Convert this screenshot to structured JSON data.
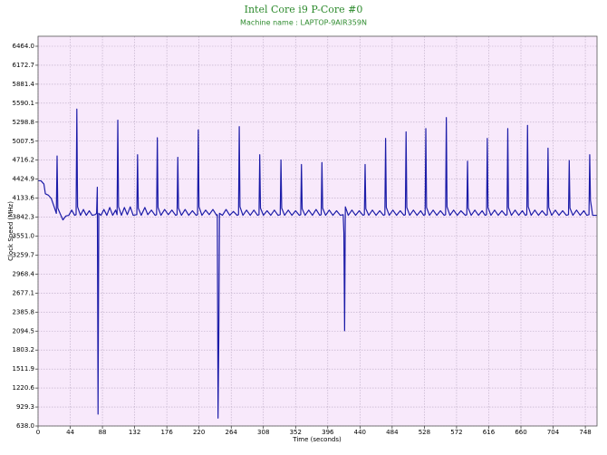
{
  "chart_data": {
    "type": "line",
    "title": "Intel Core i9 P-Core #0",
    "subtitle": "Machine name : LAPTOP-9AIR359N",
    "x_label": "Time (seconds)",
    "y_label": "Clock Speed (MHz)",
    "x": [
      0,
      4,
      8,
      10,
      14,
      18,
      22,
      25,
      26,
      27,
      30,
      34,
      38,
      42,
      46,
      50,
      52,
      53,
      54,
      58,
      62,
      66,
      70,
      74,
      78,
      80,
      81,
      82,
      83,
      86,
      90,
      94,
      98,
      102,
      106,
      108,
      109,
      110,
      114,
      118,
      122,
      126,
      130,
      135,
      136,
      137,
      141,
      146,
      150,
      155,
      160,
      162,
      163,
      164,
      168,
      173,
      178,
      183,
      188,
      190,
      191,
      192,
      196,
      201,
      206,
      211,
      216,
      218,
      219,
      220,
      224,
      229,
      234,
      239,
      244,
      245,
      246,
      247,
      248,
      252,
      257,
      262,
      267,
      272,
      274,
      275,
      276,
      280,
      285,
      290,
      295,
      300,
      302,
      303,
      304,
      308,
      313,
      318,
      323,
      328,
      331,
      332,
      333,
      337,
      342,
      347,
      352,
      357,
      359,
      360,
      361,
      365,
      370,
      375,
      380,
      385,
      387,
      388,
      389,
      393,
      398,
      403,
      408,
      413,
      417,
      418,
      419,
      420,
      424,
      429,
      434,
      439,
      444,
      446,
      447,
      448,
      452,
      457,
      462,
      467,
      472,
      474,
      475,
      476,
      480,
      485,
      490,
      495,
      500,
      502,
      503,
      504,
      508,
      513,
      518,
      523,
      527,
      529,
      530,
      531,
      535,
      540,
      545,
      550,
      555,
      557,
      558,
      559,
      563,
      568,
      573,
      578,
      584,
      586,
      587,
      588,
      592,
      597,
      602,
      607,
      611,
      613,
      614,
      615,
      619,
      624,
      629,
      634,
      639,
      641,
      642,
      643,
      647,
      652,
      657,
      662,
      666,
      668,
      669,
      670,
      674,
      679,
      684,
      689,
      694,
      696,
      697,
      698,
      702,
      707,
      712,
      717,
      722,
      725,
      726,
      727,
      731,
      736,
      741,
      746,
      750,
      753,
      754,
      755,
      758,
      764
    ],
    "series": [
      {
        "name": "P-Core #0",
        "color": "#1c1ca8",
        "values": [
          4400,
          4400,
          4350,
          4200,
          4180,
          4130,
          4000,
          3900,
          4780,
          3980,
          3900,
          3800,
          3860,
          3870,
          3950,
          3870,
          3880,
          5500,
          4000,
          3870,
          3960,
          3870,
          3940,
          3870,
          3880,
          3900,
          4300,
          820,
          3900,
          3870,
          3960,
          3870,
          3990,
          3870,
          3950,
          3880,
          5330,
          4000,
          3870,
          3990,
          3880,
          4000,
          3870,
          3880,
          4800,
          3980,
          3870,
          3990,
          3880,
          3950,
          3870,
          3880,
          5060,
          3990,
          3870,
          3960,
          3880,
          3950,
          3870,
          3880,
          4760,
          3980,
          3870,
          3960,
          3870,
          3940,
          3870,
          3880,
          5180,
          4000,
          3870,
          3950,
          3880,
          3960,
          3870,
          3880,
          760,
          1950,
          3900,
          3870,
          3960,
          3870,
          3930,
          3870,
          3880,
          5230,
          4000,
          3870,
          3950,
          3870,
          3950,
          3870,
          3880,
          4800,
          3980,
          3870,
          3940,
          3870,
          3950,
          3870,
          3880,
          4720,
          3980,
          3870,
          3950,
          3870,
          3940,
          3870,
          3880,
          4650,
          3970,
          3870,
          3950,
          3870,
          3960,
          3870,
          3880,
          4680,
          3980,
          3870,
          3950,
          3870,
          3940,
          3870,
          3880,
          3600,
          2100,
          4000,
          3870,
          3950,
          3870,
          3940,
          3870,
          3880,
          4650,
          3970,
          3870,
          3950,
          3870,
          3940,
          3870,
          3880,
          5050,
          3990,
          3870,
          3950,
          3870,
          3940,
          3870,
          3880,
          5150,
          3990,
          3870,
          3950,
          3870,
          3940,
          3870,
          3880,
          5200,
          3990,
          3870,
          3950,
          3870,
          3940,
          3870,
          3880,
          5370,
          4000,
          3870,
          3950,
          3870,
          3940,
          3870,
          3880,
          4700,
          3980,
          3870,
          3950,
          3870,
          3940,
          3870,
          3880,
          5050,
          3990,
          3870,
          3950,
          3870,
          3940,
          3870,
          3880,
          5200,
          3990,
          3870,
          3950,
          3870,
          3940,
          3870,
          3880,
          5250,
          4000,
          3870,
          3950,
          3870,
          3940,
          3870,
          3880,
          4900,
          3990,
          3870,
          3950,
          3870,
          3940,
          3870,
          3880,
          4710,
          3980,
          3870,
          3950,
          3870,
          3940,
          3870,
          3880,
          4800,
          4100,
          3870,
          3870
        ]
      }
    ],
    "xlim": [
      0,
      764
    ],
    "ylim": [
      638,
      6617
    ],
    "xticks": [
      0,
      44,
      88,
      132,
      176,
      220,
      264,
      308,
      352,
      396,
      440,
      484,
      528,
      572,
      616,
      660,
      704,
      748
    ],
    "yticks": [
      {
        "value": 638,
        "label": "638.0"
      },
      929.3,
      1220.6,
      1511.9,
      1803.2,
      2094.5,
      2385.8,
      2677.1,
      2968.4,
      3259.7,
      {
        "value": 3551,
        "label": "3551.0"
      },
      3842.3,
      4133.6,
      4424.9,
      4716.2,
      5007.5,
      5298.8,
      5590.1,
      5881.4,
      6172.7,
      {
        "value": 6464,
        "label": "6464.0"
      }
    ],
    "grid": true,
    "background": "#f8e9fb"
  }
}
